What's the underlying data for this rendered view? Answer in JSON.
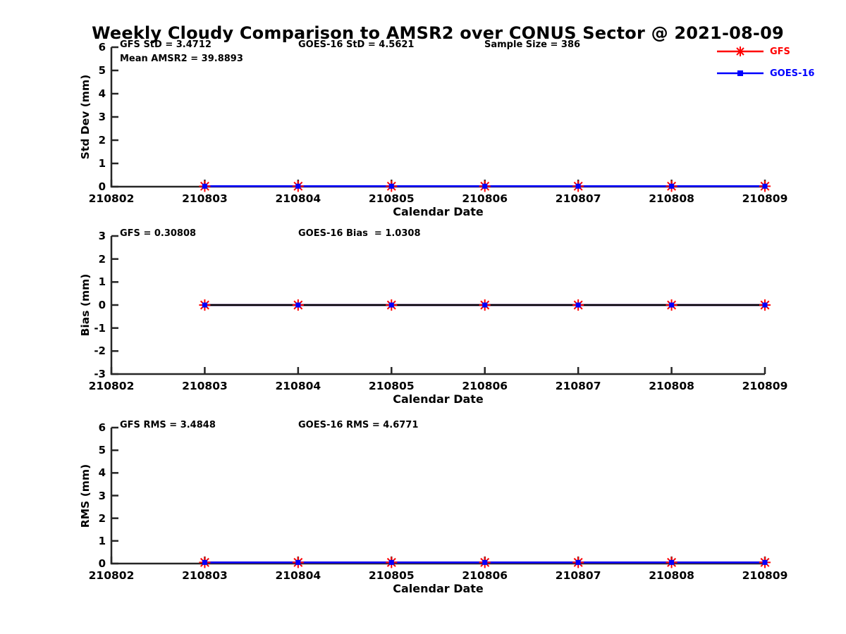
{
  "title": "Weekly Cloudy Comparison to AMSR2 over CONUS Sector @ 2021-08-09",
  "colors": {
    "gfs": "#ff0000",
    "goes16": "#0000ff",
    "axis": "#262626",
    "zero_line": "#000000",
    "text": "#000000",
    "background": "#ffffff"
  },
  "legend": {
    "items": [
      {
        "label": "GFS",
        "marker": "star",
        "color": "#ff0000"
      },
      {
        "label": "GOES-16",
        "marker": "square",
        "color": "#0000ff"
      }
    ]
  },
  "x_axis": {
    "label": "Calendar Date",
    "tick_labels": [
      "210802",
      "210803",
      "210804",
      "210805",
      "210806",
      "210807",
      "210808",
      "210809"
    ]
  },
  "chart_data": [
    {
      "type": "line",
      "ylabel": "Std Dev (mm)",
      "ylim": [
        0,
        6
      ],
      "yticks": [
        0,
        1,
        2,
        3,
        4,
        5,
        6
      ],
      "x": [
        "210803",
        "210804",
        "210805",
        "210806",
        "210807",
        "210808",
        "210809"
      ],
      "series": [
        {
          "name": "GFS",
          "color": "#ff0000",
          "marker": "star",
          "values": [
            0.02,
            0.02,
            0.02,
            0.02,
            0.02,
            0.02,
            0.02
          ]
        },
        {
          "name": "GOES-16",
          "color": "#0000ff",
          "marker": "square",
          "values": [
            0.02,
            0.02,
            0.02,
            0.02,
            0.02,
            0.02,
            0.02
          ]
        }
      ],
      "zero_line": false,
      "annotations": [
        {
          "text": "GFS StD = 3.4712",
          "col": 0,
          "row": 0
        },
        {
          "text": "Mean AMSR2 = 39.8893",
          "col": 0,
          "row": 1
        },
        {
          "text": "GOES-16 StD = 4.5621",
          "col": 1,
          "row": 0
        },
        {
          "text": "Sample Size = 386",
          "col": 2,
          "row": 0
        }
      ]
    },
    {
      "type": "line",
      "ylabel": "Bias (mm)",
      "ylim": [
        -3,
        3
      ],
      "yticks": [
        -3,
        -2,
        -1,
        0,
        1,
        2,
        3
      ],
      "x": [
        "210803",
        "210804",
        "210805",
        "210806",
        "210807",
        "210808",
        "210809"
      ],
      "series": [
        {
          "name": "GFS",
          "color": "#ff0000",
          "marker": "star",
          "values": [
            0,
            0,
            0,
            0,
            0,
            0,
            0
          ]
        },
        {
          "name": "GOES-16",
          "color": "#0000ff",
          "marker": "square",
          "values": [
            0,
            0,
            0,
            0,
            0,
            0,
            0
          ]
        }
      ],
      "zero_line": true,
      "annotations": [
        {
          "text": "GFS = 0.30808",
          "col": 0,
          "row": 0
        },
        {
          "text": "GOES-16 Bias  = 1.0308",
          "col": 1,
          "row": 0
        }
      ]
    },
    {
      "type": "line",
      "ylabel": "RMS (mm)",
      "ylim": [
        0,
        6
      ],
      "yticks": [
        0,
        1,
        2,
        3,
        4,
        5,
        6
      ],
      "x": [
        "210803",
        "210804",
        "210805",
        "210806",
        "210807",
        "210808",
        "210809"
      ],
      "series": [
        {
          "name": "GFS",
          "color": "#ff0000",
          "marker": "star",
          "values": [
            0.05,
            0.05,
            0.05,
            0.05,
            0.05,
            0.05,
            0.05
          ]
        },
        {
          "name": "GOES-16",
          "color": "#0000ff",
          "marker": "square",
          "values": [
            0.05,
            0.05,
            0.05,
            0.05,
            0.05,
            0.05,
            0.05
          ]
        }
      ],
      "zero_line": false,
      "annotations": [
        {
          "text": "GFS RMS = 3.4848",
          "col": 0,
          "row": 0
        },
        {
          "text": "GOES-16 RMS = 4.6771",
          "col": 1,
          "row": 0
        }
      ]
    }
  ]
}
